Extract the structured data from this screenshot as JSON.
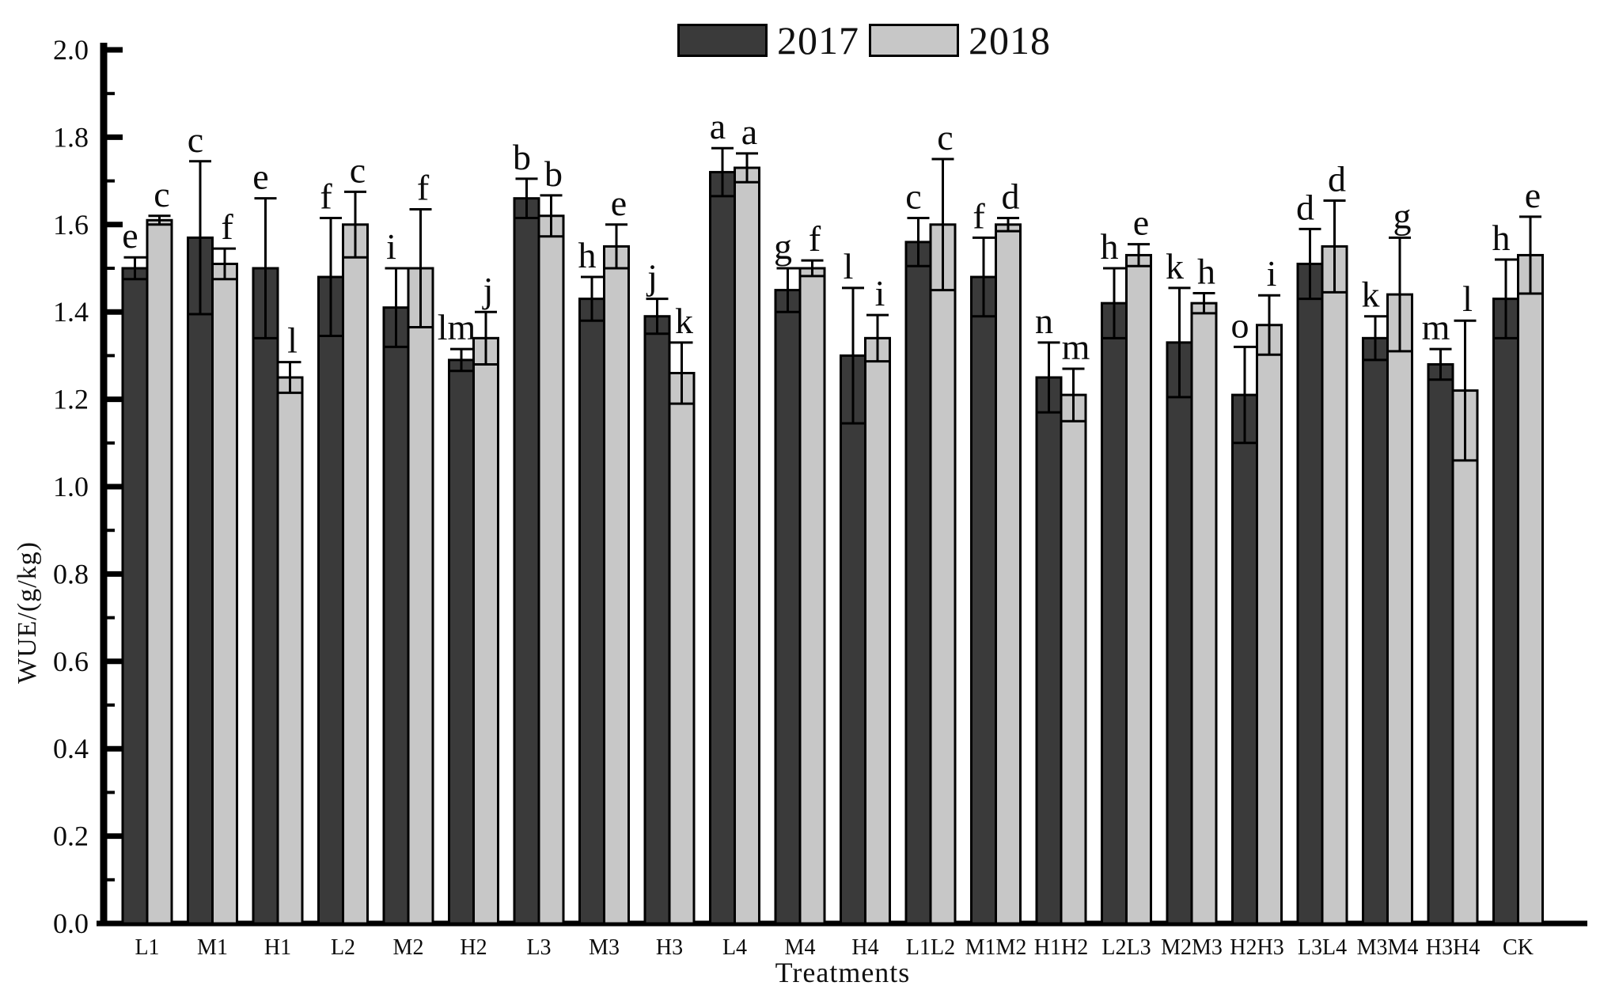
{
  "figure": {
    "background": "#ffffff",
    "axis_color": "#000000"
  },
  "legend": {
    "position": "top-center",
    "items": [
      {
        "label": "2017",
        "color": "#3a3a3a"
      },
      {
        "label": "2018",
        "color": "#c7c7c7"
      }
    ]
  },
  "chart_data": {
    "type": "bar",
    "title": "",
    "xlabel": "Treatments",
    "ylabel": "WUE/(g/kg)",
    "ylim": [
      0.0,
      2.0
    ],
    "ytick_step": 0.2,
    "yminor_step": 0.1,
    "ytick_labels": [
      "0.0",
      "0.2",
      "0.4",
      "0.6",
      "0.8",
      "1.0",
      "1.2",
      "1.4",
      "1.6",
      "1.8",
      "2.0"
    ],
    "grid": false,
    "error_bars": true,
    "legend_position": "top-center",
    "categories": [
      "L1",
      "M1",
      "H1",
      "L2",
      "M2",
      "H2",
      "L3",
      "M3",
      "H3",
      "L4",
      "M4",
      "H4",
      "L1L2",
      "M1M2",
      "H1H2",
      "L2L3",
      "M2M3",
      "H2H3",
      "L3L4",
      "M3M4",
      "H3H4",
      "CK"
    ],
    "series": [
      {
        "name": "2017",
        "color": "#3a3a3a",
        "values": [
          1.5,
          1.57,
          1.5,
          1.48,
          1.41,
          1.29,
          1.66,
          1.43,
          1.39,
          1.72,
          1.45,
          1.3,
          1.56,
          1.48,
          1.25,
          1.42,
          1.33,
          1.21,
          1.51,
          1.34,
          1.28,
          1.43
        ],
        "errors": [
          0.025,
          0.175,
          0.16,
          0.135,
          0.09,
          0.025,
          0.045,
          0.05,
          0.04,
          0.055,
          0.05,
          0.155,
          0.055,
          0.09,
          0.08,
          0.08,
          0.125,
          0.11,
          0.08,
          0.05,
          0.035,
          0.09
        ],
        "letters": [
          "e",
          "c",
          "e",
          "f",
          "i",
          "lm",
          "b",
          "h",
          "j",
          "a",
          "g",
          "l",
          "c",
          "f",
          "n",
          "h",
          "k",
          "o",
          "d",
          "k",
          "m",
          "h"
        ]
      },
      {
        "name": "2018",
        "color": "#c7c7c7",
        "values": [
          1.61,
          1.51,
          1.25,
          1.6,
          1.5,
          1.34,
          1.62,
          1.55,
          1.26,
          1.73,
          1.5,
          1.34,
          1.6,
          1.6,
          1.21,
          1.53,
          1.42,
          1.37,
          1.55,
          1.44,
          1.22,
          1.53
        ],
        "errors": [
          0.01,
          0.035,
          0.035,
          0.075,
          0.135,
          0.06,
          0.047,
          0.05,
          0.07,
          0.033,
          0.018,
          0.053,
          0.15,
          0.015,
          0.06,
          0.025,
          0.023,
          0.068,
          0.105,
          0.13,
          0.16,
          0.088
        ],
        "letters": [
          "c",
          "f",
          "l",
          "c",
          "f",
          "j",
          "b",
          "e",
          "k",
          "a",
          "f",
          "i",
          "c",
          "d",
          "m",
          "e",
          "h",
          "i",
          "d",
          "g",
          "l",
          "e"
        ]
      }
    ]
  }
}
